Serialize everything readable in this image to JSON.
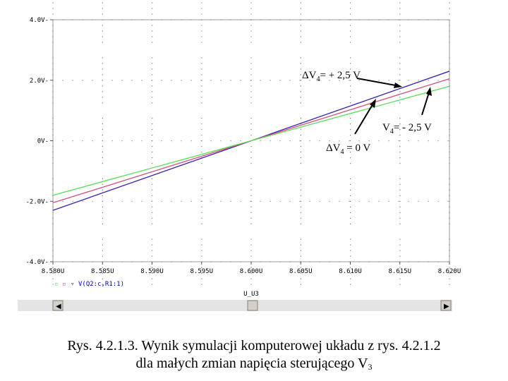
{
  "chart_data": {
    "type": "line",
    "x_ticks": [
      "8.580U",
      "8.585U",
      "8.590U",
      "8.595U",
      "8.600U",
      "8.605U",
      "8.610U",
      "8.615U",
      "8.620U"
    ],
    "y_ticks": [
      "4.0V",
      "2.0V",
      "0V",
      "-2.0V",
      "-4.0V"
    ],
    "xlim": [
      8.58,
      8.62
    ],
    "ylim": [
      -4.0,
      4.0
    ],
    "xlabel": "U_U3",
    "legend_label": "V(Q2:c,R1:1)",
    "series": [
      {
        "x": [
          8.58,
          8.62
        ],
        "y": [
          -2.3,
          2.3
        ],
        "color": "#3a1fb0"
      },
      {
        "x": [
          8.58,
          8.62
        ],
        "y": [
          -2.05,
          2.05
        ],
        "color": "#d0507a"
      },
      {
        "x": [
          8.58,
          8.62
        ],
        "y": [
          -1.8,
          1.8
        ],
        "color": "#55dd55"
      }
    ]
  },
  "annotations": {
    "plus": {
      "prefix": "ΔV",
      "sub": "4",
      "suffix": "= + 2,5 V"
    },
    "minus": {
      "prefix": "V",
      "sub": "4",
      "suffix": "= - 2,5 V"
    },
    "zero": {
      "prefix": "ΔV",
      "sub": "4",
      "suffix": " = 0 V"
    }
  },
  "caption": {
    "line1": "Rys. 4.2.1.3. Wynik symulacji komputerowej układu z rys. 4.2.1.2",
    "line2_text": "dla małych zmian napięcia sterującego V",
    "line2_sub": "3"
  }
}
